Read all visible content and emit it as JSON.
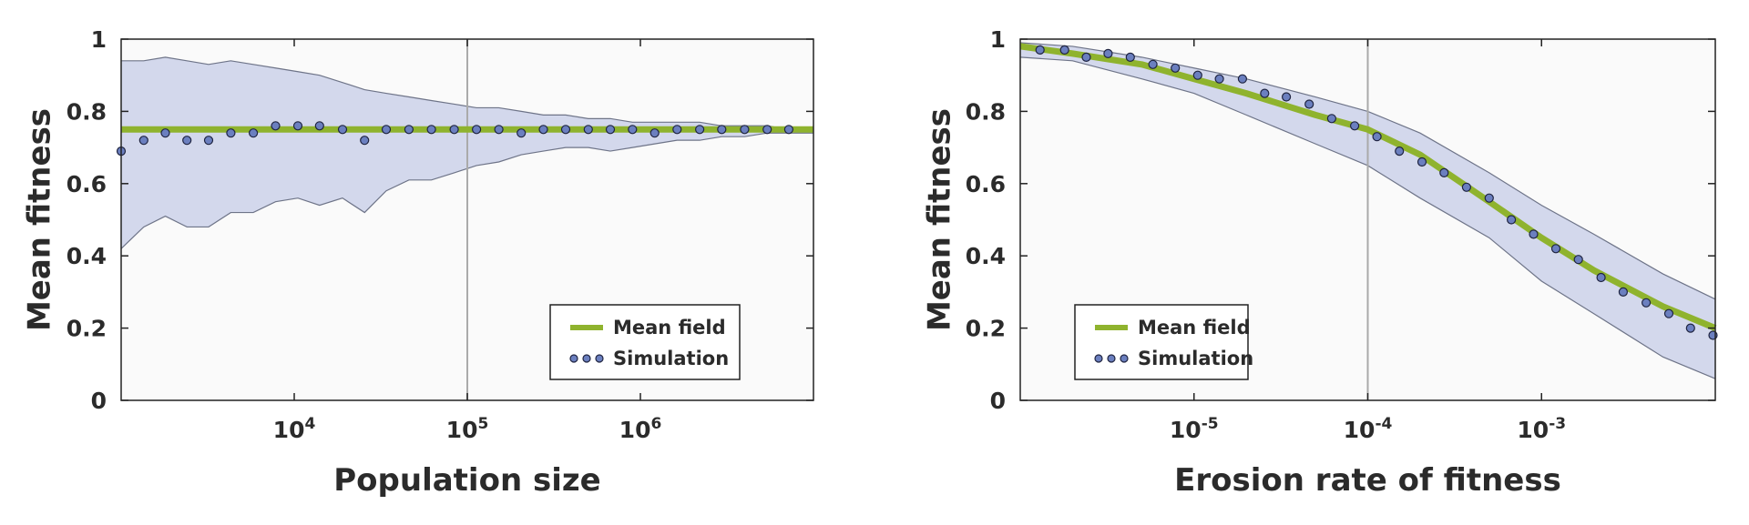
{
  "chart_data": [
    {
      "type": "line",
      "xlabel": "Population size",
      "ylabel": "Mean fitness",
      "xscale": "log",
      "xlim": [
        1000,
        10000000
      ],
      "ylim": [
        0,
        1
      ],
      "yticks": [
        0,
        0.2,
        0.4,
        0.6,
        0.8,
        1
      ],
      "ytick_labels": [
        "0",
        "0.2",
        "0.4",
        "0.6",
        "0.8",
        "1"
      ],
      "xticks": [
        10000,
        100000,
        1000000
      ],
      "xtick_labels": [
        {
          "base": "10",
          "exp": "4"
        },
        {
          "base": "10",
          "exp": "5"
        },
        {
          "base": "10",
          "exp": "6"
        }
      ],
      "vline": 100000,
      "grid": false,
      "legend": {
        "placement": "bottom-right",
        "entries": [
          "Mean field",
          "Simulation"
        ]
      },
      "colors": {
        "mean_field": "#8fb32e",
        "simulation_fill": "#6b7fbf",
        "band_fill": "#d3d8ec",
        "band_edge": "#6e7488",
        "background": "#fafafa",
        "vline": "#aaaaaa"
      },
      "series": [
        {
          "name": "Mean field",
          "kind": "line",
          "x": [
            1000,
            10000000
          ],
          "y": [
            0.75,
            0.75
          ]
        },
        {
          "name": "Simulation",
          "kind": "scatter",
          "x": [
            1000,
            1350,
            1800,
            2400,
            3200,
            4300,
            5800,
            7800,
            10500,
            14000,
            19000,
            25500,
            34000,
            46000,
            62000,
            84000,
            113000,
            152000,
            205000,
            275000,
            370000,
            500000,
            670000,
            900000,
            1210000,
            1630000,
            2200000,
            2950000,
            4000000,
            5400000,
            7200000
          ],
          "y": [
            0.69,
            0.72,
            0.74,
            0.72,
            0.72,
            0.74,
            0.74,
            0.76,
            0.76,
            0.76,
            0.75,
            0.72,
            0.75,
            0.75,
            0.75,
            0.75,
            0.75,
            0.75,
            0.74,
            0.75,
            0.75,
            0.75,
            0.75,
            0.75,
            0.74,
            0.75,
            0.75,
            0.75,
            0.75,
            0.75,
            0.75
          ]
        },
        {
          "name": "",
          "kind": "band",
          "x": [
            1000,
            1350,
            1800,
            2400,
            3200,
            4300,
            5800,
            7800,
            10500,
            14000,
            19000,
            25500,
            34000,
            46000,
            62000,
            84000,
            113000,
            152000,
            205000,
            275000,
            370000,
            500000,
            670000,
            900000,
            1210000,
            1630000,
            2200000,
            2950000,
            4000000,
            5400000,
            7200000,
            10000000
          ],
          "upper": [
            0.94,
            0.94,
            0.95,
            0.94,
            0.93,
            0.94,
            0.93,
            0.92,
            0.91,
            0.9,
            0.88,
            0.86,
            0.85,
            0.84,
            0.83,
            0.82,
            0.81,
            0.81,
            0.8,
            0.79,
            0.79,
            0.78,
            0.78,
            0.77,
            0.77,
            0.77,
            0.77,
            0.76,
            0.76,
            0.76,
            0.75,
            0.75
          ],
          "lower": [
            0.42,
            0.48,
            0.51,
            0.48,
            0.48,
            0.52,
            0.52,
            0.55,
            0.56,
            0.54,
            0.56,
            0.52,
            0.58,
            0.61,
            0.61,
            0.63,
            0.65,
            0.66,
            0.68,
            0.69,
            0.7,
            0.7,
            0.69,
            0.7,
            0.71,
            0.72,
            0.72,
            0.73,
            0.73,
            0.74,
            0.74,
            0.74
          ]
        }
      ]
    },
    {
      "type": "line",
      "xlabel": "Erosion rate of fitness",
      "ylabel": "Mean fitness",
      "xscale": "log",
      "xlim": [
        1e-06,
        0.01
      ],
      "ylim": [
        0,
        1
      ],
      "yticks": [
        0,
        0.2,
        0.4,
        0.6,
        0.8,
        1
      ],
      "ytick_labels": [
        "0",
        "0.2",
        "0.4",
        "0.6",
        "0.8",
        "1"
      ],
      "xticks": [
        1e-05,
        0.0001,
        0.001
      ],
      "xtick_labels": [
        {
          "base": "10",
          "exp": "-5"
        },
        {
          "base": "10",
          "exp": "-4"
        },
        {
          "base": "10",
          "exp": "-3"
        }
      ],
      "vline": 0.0001,
      "grid": false,
      "legend": {
        "placement": "bottom-left",
        "entries": [
          "Mean field",
          "Simulation"
        ]
      },
      "colors": {
        "mean_field": "#8fb32e",
        "simulation_fill": "#6b7fbf",
        "band_fill": "#d3d8ec",
        "band_edge": "#6e7488",
        "background": "#fafafa",
        "vline": "#aaaaaa"
      },
      "series": [
        {
          "name": "Mean field",
          "kind": "line",
          "x": [
            1e-06,
            2e-06,
            5e-06,
            1e-05,
            2e-05,
            5e-05,
            0.0001,
            0.0002,
            0.0005,
            0.001,
            0.002,
            0.005,
            0.01
          ],
          "y": [
            0.98,
            0.96,
            0.93,
            0.89,
            0.85,
            0.79,
            0.75,
            0.68,
            0.55,
            0.45,
            0.36,
            0.26,
            0.2
          ]
        },
        {
          "name": "Simulation",
          "kind": "scatter",
          "x": [
            1.3e-06,
            1.8e-06,
            2.4e-06,
            3.2e-06,
            4.3e-06,
            5.8e-06,
            7.8e-06,
            1.05e-05,
            1.4e-05,
            1.9e-05,
            2.55e-05,
            3.4e-05,
            4.6e-05,
            6.2e-05,
            8.4e-05,
            0.000113,
            0.000152,
            0.000205,
            0.000275,
            0.00037,
            0.0005,
            0.00067,
            0.0009,
            0.00121,
            0.00163,
            0.0022,
            0.00295,
            0.004,
            0.0054,
            0.0072,
            0.0097
          ],
          "y": [
            0.97,
            0.97,
            0.95,
            0.96,
            0.95,
            0.93,
            0.92,
            0.9,
            0.89,
            0.89,
            0.85,
            0.84,
            0.82,
            0.78,
            0.76,
            0.73,
            0.69,
            0.66,
            0.63,
            0.59,
            0.56,
            0.5,
            0.46,
            0.42,
            0.39,
            0.34,
            0.3,
            0.27,
            0.24,
            0.2,
            0.18
          ]
        },
        {
          "name": "",
          "kind": "band",
          "x": [
            1e-06,
            2e-06,
            5e-06,
            1e-05,
            2e-05,
            5e-05,
            0.0001,
            0.0002,
            0.0005,
            0.001,
            0.002,
            0.005,
            0.01
          ],
          "upper": [
            0.99,
            0.98,
            0.95,
            0.92,
            0.89,
            0.84,
            0.8,
            0.74,
            0.63,
            0.54,
            0.46,
            0.35,
            0.28
          ],
          "lower": [
            0.95,
            0.94,
            0.89,
            0.85,
            0.79,
            0.71,
            0.65,
            0.56,
            0.45,
            0.33,
            0.24,
            0.12,
            0.06
          ]
        }
      ]
    }
  ]
}
